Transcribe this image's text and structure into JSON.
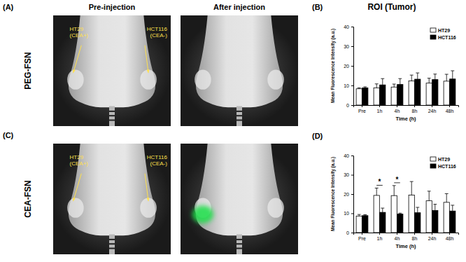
{
  "images": {
    "columns": [
      "Pre-injection",
      "After injection"
    ],
    "rows": [
      {
        "panel": "(A)",
        "label": "PEG-FSN"
      },
      {
        "panel": "(C)",
        "label": "CEA-FSN"
      }
    ],
    "tumor_labels": [
      [
        "HT29",
        "(CEA+)"
      ],
      [
        "HCT116",
        "(CEA-)"
      ]
    ]
  },
  "chart_data": [
    {
      "type": "bar",
      "panel": "(B)",
      "title": "ROI (Tumor)",
      "x_label": "Time (h)",
      "y_label": "Mean Fluorescence Intensity (a.u.)",
      "categories": [
        "Pre",
        "1h",
        "4h",
        "8h",
        "24h",
        "48h"
      ],
      "series": [
        {
          "name": "HT29",
          "color": "#ffffff",
          "values": [
            8.3,
            8.8,
            9.2,
            12.3,
            11.2,
            12.2
          ],
          "errors": [
            0.5,
            2.0,
            1.5,
            3.0,
            2.5,
            3.5
          ]
        },
        {
          "name": "HCT116",
          "color": "#000000",
          "values": [
            8.8,
            10.3,
            10.5,
            13.2,
            13.0,
            13.3
          ],
          "errors": [
            0.5,
            3.2,
            3.0,
            3.2,
            2.8,
            4.2
          ]
        }
      ],
      "ylim": [
        0,
        40
      ],
      "yticks": [
        0,
        10,
        20,
        30,
        40
      ],
      "grid": false,
      "legend": "upper right"
    },
    {
      "type": "bar",
      "panel": "(D)",
      "x_label": "Time (h)",
      "y_label": "Mean Fluorescence Intensity (a.u.)",
      "categories": [
        "Pre",
        "1h",
        "4h",
        "8h",
        "24h",
        "48h"
      ],
      "series": [
        {
          "name": "HT29",
          "color": "#ffffff",
          "values": [
            8.6,
            19.3,
            19.2,
            19.5,
            16.5,
            15.7
          ],
          "errors": [
            0.8,
            3.8,
            5.2,
            7.0,
            5.0,
            4.5
          ]
        },
        {
          "name": "HCT116",
          "color": "#000000",
          "values": [
            8.8,
            10.5,
            9.6,
            10.3,
            11.5,
            11.2
          ],
          "errors": [
            0.5,
            2.2,
            0.5,
            2.8,
            3.2,
            3.0
          ]
        }
      ],
      "ylim": [
        0,
        40
      ],
      "yticks": [
        0,
        10,
        20,
        30,
        40
      ],
      "grid": false,
      "legend": "upper right",
      "annotations": [
        {
          "text": "*",
          "category": "1h"
        },
        {
          "text": "*",
          "category": "4h"
        }
      ]
    }
  ]
}
